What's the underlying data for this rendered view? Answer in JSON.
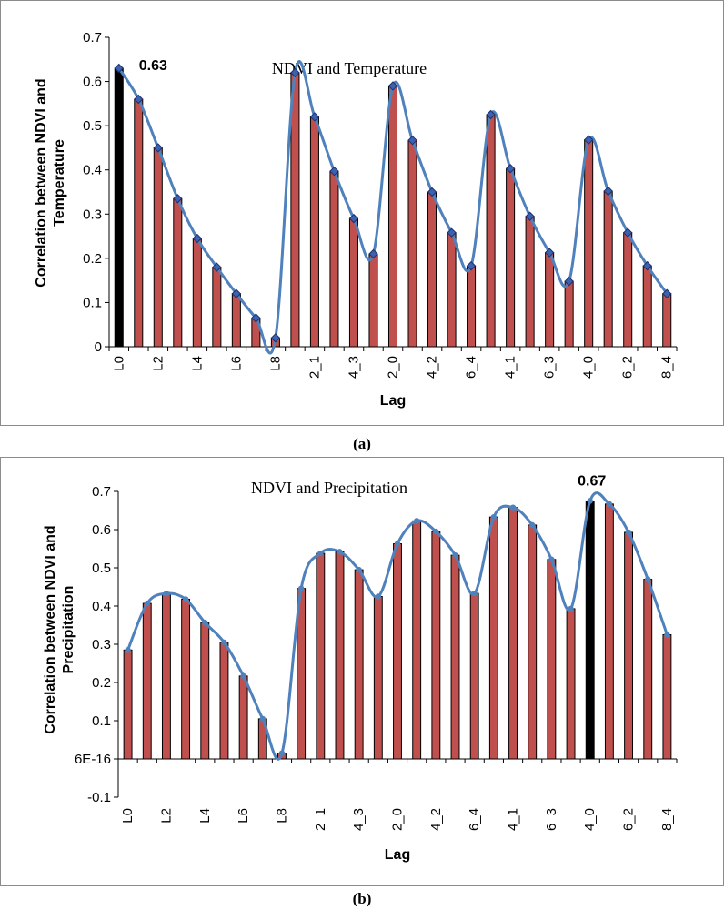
{
  "captions": {
    "a": "(a)",
    "b": "(b)"
  },
  "chart_data": [
    {
      "type": "bar",
      "title": "NDVI and Temperature",
      "xlabel": "Lag",
      "ylabel": "Correlation between NDVI and Temperature",
      "ylim": [
        0,
        0.7
      ],
      "ytick_values": [
        0,
        0.1,
        0.2,
        0.3,
        0.4,
        0.5,
        0.6,
        0.7
      ],
      "ytick_labels": [
        "0",
        "0.1",
        "0.2",
        "0.3",
        "0.4",
        "0.5",
        "0.6",
        "0.7"
      ],
      "xtick_labels": [
        "L0",
        "L2",
        "L4",
        "L6",
        "L8",
        "2_1",
        "4_3",
        "2_0",
        "4_2",
        "6_4",
        "4_1",
        "6_3",
        "4_0",
        "6_2",
        "8_4"
      ],
      "values": [
        0.63,
        0.56,
        0.45,
        0.335,
        0.245,
        0.18,
        0.12,
        0.065,
        0.02,
        0.62,
        0.52,
        0.397,
        0.29,
        0.21,
        0.59,
        0.467,
        0.35,
        0.258,
        0.183,
        0.525,
        0.403,
        0.295,
        0.213,
        0.148,
        0.468,
        0.352,
        0.258,
        0.183,
        0.12
      ],
      "highlight_index": 0,
      "annotation": "0.63",
      "colors": {
        "bar": "#c0504d",
        "highlight": "#000000",
        "line": "#4f81bd",
        "marker": "#3b62b0"
      },
      "marker": "diamond",
      "grid": false
    },
    {
      "type": "bar",
      "title": "NDVI and Precipitation",
      "xlabel": "Lag",
      "ylabel": "Correlation between NDVI and Precipitation",
      "ylim": [
        -0.1,
        0.7
      ],
      "ytick_values": [
        -0.1,
        0,
        0.1,
        0.2,
        0.3,
        0.4,
        0.5,
        0.6,
        0.7
      ],
      "ytick_labels": [
        "-0.1",
        "6E-16",
        "0.1",
        "0.2",
        "0.3",
        "0.4",
        "0.5",
        "0.6",
        "0.7"
      ],
      "xtick_labels": [
        "L0",
        "L2",
        "L4",
        "L6",
        "L8",
        "2_1",
        "4_3",
        "2_0",
        "4_2",
        "6_4",
        "4_1",
        "6_3",
        "4_0",
        "6_2",
        "8_4"
      ],
      "values": [
        0.285,
        0.407,
        0.433,
        0.418,
        0.357,
        0.305,
        0.217,
        0.105,
        0.015,
        0.446,
        0.538,
        0.542,
        0.495,
        0.425,
        0.563,
        0.623,
        0.595,
        0.533,
        0.433,
        0.633,
        0.658,
        0.612,
        0.522,
        0.393,
        0.675,
        0.667,
        0.593,
        0.47,
        0.325
      ],
      "highlight_index": 24,
      "annotation": "0.67",
      "colors": {
        "bar": "#c0504d",
        "highlight": "#000000",
        "line": "#4f81bd",
        "marker": "#4f81bd"
      },
      "marker": "dot",
      "grid": false
    }
  ]
}
